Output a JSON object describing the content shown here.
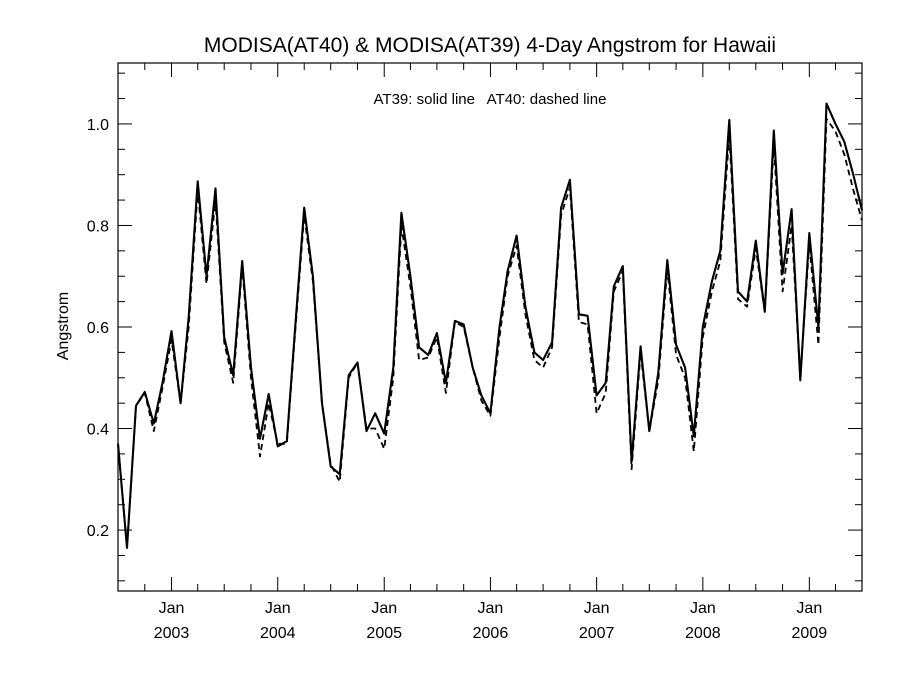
{
  "chart_data": {
    "type": "line",
    "title": "MODISA(AT40) & MODISA(AT39) 4-Day Angstrom for Hawaii",
    "annotation": "AT39: solid line   AT40: dashed line",
    "xlabel": "",
    "ylabel": "Angstrom",
    "xlim": [
      "2002-07-01",
      "2009-07-01"
    ],
    "ylim": [
      0.08,
      1.12
    ],
    "x_ticks": [
      {
        "date": "2003-01-01",
        "month": "Jan",
        "year": "2003"
      },
      {
        "date": "2004-01-01",
        "month": "Jan",
        "year": "2004"
      },
      {
        "date": "2005-01-01",
        "month": "Jan",
        "year": "2005"
      },
      {
        "date": "2006-01-01",
        "month": "Jan",
        "year": "2006"
      },
      {
        "date": "2007-01-01",
        "month": "Jan",
        "year": "2007"
      },
      {
        "date": "2008-01-01",
        "month": "Jan",
        "year": "2008"
      },
      {
        "date": "2009-01-01",
        "month": "Jan",
        "year": "2009"
      }
    ],
    "y_ticks": [
      "0.2",
      "0.4",
      "0.6",
      "0.8",
      "1.0"
    ],
    "x": [
      "2002-07-01",
      "2002-08-01",
      "2002-09-01",
      "2002-10-01",
      "2002-11-01",
      "2002-12-01",
      "2003-01-01",
      "2003-02-01",
      "2003-03-01",
      "2003-04-01",
      "2003-05-01",
      "2003-06-01",
      "2003-07-01",
      "2003-08-01",
      "2003-09-01",
      "2003-10-01",
      "2003-11-01",
      "2003-12-01",
      "2004-01-01",
      "2004-02-01",
      "2004-03-01",
      "2004-04-01",
      "2004-05-01",
      "2004-06-01",
      "2004-07-01",
      "2004-08-01",
      "2004-09-01",
      "2004-10-01",
      "2004-11-01",
      "2004-12-01",
      "2005-01-01",
      "2005-02-01",
      "2005-03-01",
      "2005-04-01",
      "2005-05-01",
      "2005-06-01",
      "2005-07-01",
      "2005-08-01",
      "2005-09-01",
      "2005-10-01",
      "2005-11-01",
      "2005-12-01",
      "2006-01-01",
      "2006-02-01",
      "2006-03-01",
      "2006-04-01",
      "2006-05-01",
      "2006-06-01",
      "2006-07-01",
      "2006-08-01",
      "2006-09-01",
      "2006-10-01",
      "2006-11-01",
      "2006-12-01",
      "2007-01-01",
      "2007-02-01",
      "2007-03-01",
      "2007-04-01",
      "2007-05-01",
      "2007-06-01",
      "2007-07-01",
      "2007-08-01",
      "2007-09-01",
      "2007-10-01",
      "2007-11-01",
      "2007-12-01",
      "2008-01-01",
      "2008-02-01",
      "2008-03-01",
      "2008-04-01",
      "2008-05-01",
      "2008-06-01",
      "2008-07-01",
      "2008-08-01",
      "2008-09-01",
      "2008-10-01",
      "2008-11-01",
      "2008-12-01",
      "2009-01-01",
      "2009-02-01",
      "2009-03-01",
      "2009-04-01",
      "2009-05-01",
      "2009-06-01",
      "2009-07-01"
    ],
    "series": [
      {
        "name": "AT39",
        "style": "solid",
        "color": "#000000",
        "values": [
          0.37,
          0.165,
          0.445,
          0.472,
          0.41,
          0.49,
          0.592,
          0.45,
          0.62,
          0.887,
          0.7,
          0.873,
          0.58,
          0.505,
          0.73,
          0.52,
          0.38,
          0.468,
          0.365,
          0.375,
          0.6,
          0.835,
          0.7,
          0.45,
          0.325,
          0.31,
          0.505,
          0.53,
          0.395,
          0.43,
          0.39,
          0.52,
          0.825,
          0.7,
          0.56,
          0.545,
          0.588,
          0.49,
          0.612,
          0.605,
          0.52,
          0.465,
          0.43,
          0.6,
          0.71,
          0.78,
          0.64,
          0.55,
          0.535,
          0.57,
          0.835,
          0.89,
          0.625,
          0.622,
          0.465,
          0.49,
          0.68,
          0.72,
          0.335,
          0.562,
          0.395,
          0.51,
          0.732,
          0.565,
          0.52,
          0.385,
          0.6,
          0.69,
          0.75,
          1.008,
          0.67,
          0.65,
          0.77,
          0.63,
          0.987,
          0.705,
          0.832,
          0.495,
          0.785,
          0.6,
          1.04,
          1.0,
          0.965,
          0.9,
          0.83
        ]
      },
      {
        "name": "AT40",
        "style": "dashed",
        "color": "#000000",
        "values": [
          0.37,
          0.165,
          0.445,
          0.47,
          0.395,
          0.48,
          0.575,
          0.45,
          0.6,
          0.87,
          0.685,
          0.85,
          0.57,
          0.49,
          0.72,
          0.5,
          0.345,
          0.45,
          0.37,
          0.37,
          0.59,
          0.82,
          0.69,
          0.45,
          0.33,
          0.295,
          0.5,
          0.53,
          0.4,
          0.4,
          0.36,
          0.5,
          0.8,
          0.68,
          0.535,
          0.54,
          0.58,
          0.47,
          0.61,
          0.6,
          0.52,
          0.455,
          0.425,
          0.58,
          0.7,
          0.76,
          0.625,
          0.535,
          0.52,
          0.56,
          0.82,
          0.875,
          0.61,
          0.605,
          0.43,
          0.47,
          0.67,
          0.71,
          0.32,
          0.55,
          0.395,
          0.495,
          0.715,
          0.545,
          0.5,
          0.355,
          0.58,
          0.67,
          0.73,
          0.98,
          0.655,
          0.64,
          0.755,
          0.63,
          0.96,
          0.67,
          0.8,
          0.5,
          0.765,
          0.565,
          1.01,
          0.985,
          0.94,
          0.87,
          0.81
        ]
      }
    ],
    "grid": false,
    "legend": "none"
  }
}
